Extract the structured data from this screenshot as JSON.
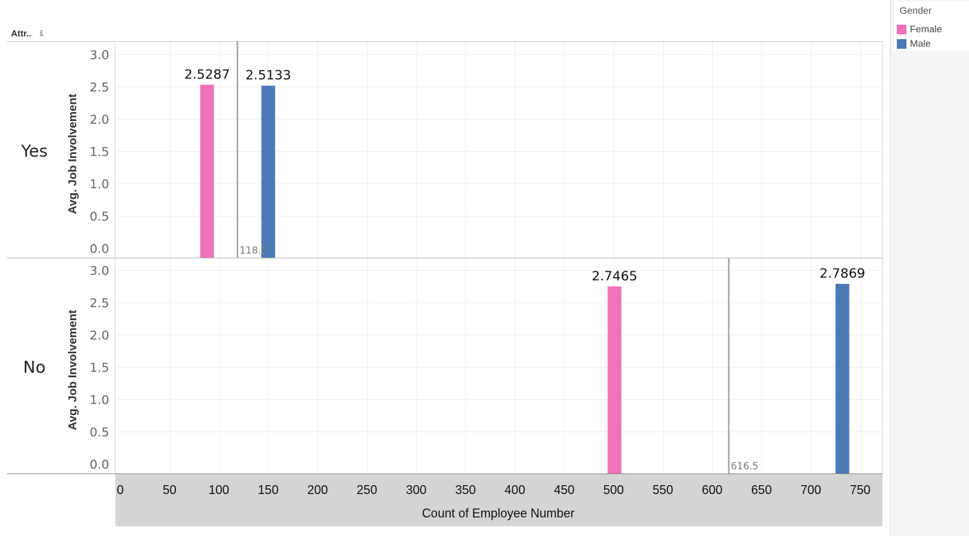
{
  "header": {
    "row_field": "Attr..",
    "sort_icon": "sort-az-icon"
  },
  "legend": {
    "title": "Gender",
    "items": [
      {
        "label": "Female",
        "color": "#ed72b6"
      },
      {
        "label": "Male",
        "color": "#4e79b7"
      }
    ]
  },
  "chart_data": {
    "type": "bar",
    "xlabel": "Count of Employee Number",
    "ylabel": "Avg. Job Involvement",
    "xlim": [
      0,
      770
    ],
    "ylim": [
      0,
      3.3
    ],
    "x_ticks": [
      "0",
      "50",
      "100",
      "150",
      "200",
      "250",
      "300",
      "350",
      "400",
      "450",
      "500",
      "550",
      "600",
      "650",
      "700",
      "750"
    ],
    "y_ticks": [
      "0.0",
      "0.5",
      "1.0",
      "1.5",
      "2.0",
      "2.5",
      "3.0"
    ],
    "grid": true,
    "legend_position": "top-right",
    "panels": [
      {
        "row": "Yes",
        "bars": [
          {
            "gender": "Female",
            "x": 88,
            "y": 2.5287,
            "label": "2.5287"
          },
          {
            "gender": "Male",
            "x": 150,
            "y": 2.5133,
            "label": "2.5133"
          }
        ],
        "reference_line": {
          "x": 118.5,
          "label": "118.5"
        }
      },
      {
        "row": "No",
        "bars": [
          {
            "gender": "Female",
            "x": 501,
            "y": 2.7465,
            "label": "2.7465"
          },
          {
            "gender": "Male",
            "x": 732,
            "y": 2.7869,
            "label": "2.7869"
          }
        ],
        "reference_line": {
          "x": 616.5,
          "label": "616.5"
        }
      }
    ]
  }
}
